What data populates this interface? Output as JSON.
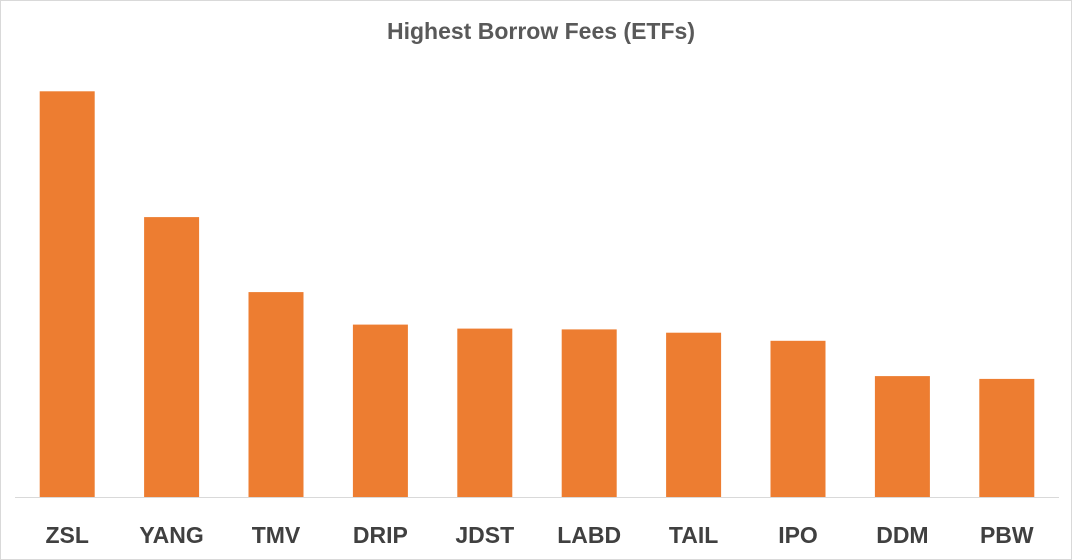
{
  "chart_data": {
    "type": "bar",
    "title": "Highest Borrow Fees (ETFs)",
    "xlabel": "",
    "ylabel": "",
    "categories": [
      "ZSL",
      "YANG",
      "TMV",
      "DRIP",
      "JDST",
      "LABD",
      "TAIL",
      "IPO",
      "DDM",
      "PBW"
    ],
    "values": [
      100,
      69,
      50.5,
      42.5,
      41.5,
      41.3,
      40.5,
      38.5,
      29.8,
      29.1
    ],
    "ylim": [
      0,
      105
    ],
    "grid": false,
    "legend": "none",
    "bar_color": "#ED7D31",
    "axis_color": "#D9D9D9"
  }
}
